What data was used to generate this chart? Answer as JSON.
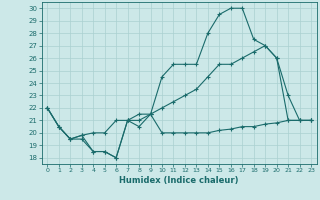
{
  "xlabel": "Humidex (Indice chaleur)",
  "ylabel": "",
  "bg_color": "#cce8e8",
  "grid_color": "#aad0d0",
  "line_color": "#1a6b6b",
  "xlim": [
    -0.5,
    23.5
  ],
  "ylim": [
    17.5,
    30.5
  ],
  "xticks": [
    0,
    1,
    2,
    3,
    4,
    5,
    6,
    7,
    8,
    9,
    10,
    11,
    12,
    13,
    14,
    15,
    16,
    17,
    18,
    19,
    20,
    21,
    22,
    23
  ],
  "yticks": [
    18,
    19,
    20,
    21,
    22,
    23,
    24,
    25,
    26,
    27,
    28,
    29,
    30
  ],
  "curve1_x": [
    0,
    1,
    2,
    3,
    4,
    5,
    6,
    7,
    8,
    9,
    10,
    11,
    12,
    13,
    14,
    15,
    16,
    17,
    18,
    19,
    20,
    21,
    22,
    23
  ],
  "curve1_y": [
    22,
    20.5,
    19.5,
    19.5,
    18.5,
    18.5,
    18,
    21,
    20.5,
    21.5,
    20,
    20,
    20,
    20,
    20,
    20.2,
    20.3,
    20.5,
    20.5,
    20.7,
    20.8,
    21,
    21,
    21
  ],
  "curve2_x": [
    0,
    1,
    2,
    3,
    4,
    5,
    6,
    7,
    8,
    9,
    10,
    11,
    12,
    13,
    14,
    15,
    16,
    17,
    18,
    19,
    20,
    21,
    22,
    23
  ],
  "curve2_y": [
    22,
    20.5,
    19.5,
    19.8,
    20,
    20,
    21,
    21,
    21.5,
    21.5,
    22,
    22.5,
    23,
    23.5,
    24.5,
    25.5,
    25.5,
    26,
    26.5,
    27,
    26,
    21,
    21,
    21
  ],
  "curve3_x": [
    0,
    1,
    2,
    3,
    4,
    5,
    6,
    7,
    8,
    9,
    10,
    11,
    12,
    13,
    14,
    15,
    16,
    17,
    18,
    19,
    20,
    21,
    22,
    23
  ],
  "curve3_y": [
    22,
    20.5,
    19.5,
    19.8,
    18.5,
    18.5,
    18,
    21,
    21,
    21.5,
    24.5,
    25.5,
    25.5,
    25.5,
    28,
    29.5,
    30,
    30,
    27.5,
    27,
    26,
    23,
    21,
    21
  ]
}
